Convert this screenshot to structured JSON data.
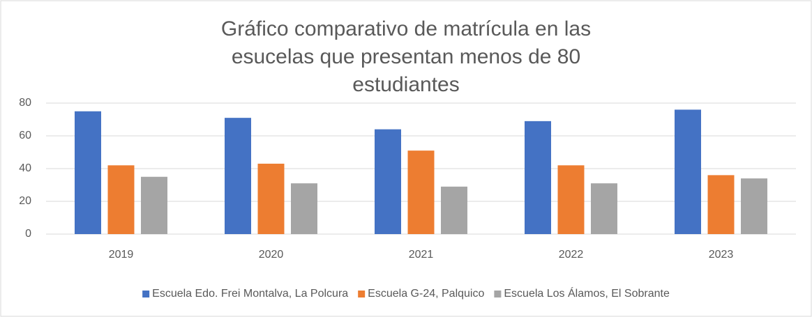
{
  "chart_data": {
    "type": "bar",
    "title": "Gráfico comparativo de matrícula en las esucelas que presentan menos de 80 estudiantes",
    "categories": [
      "2019",
      "2020",
      "2021",
      "2022",
      "2023"
    ],
    "series": [
      {
        "name": "Escuela Edo. Frei Montalva, La Polcura",
        "color": "#4472c4",
        "values": [
          75,
          71,
          64,
          69,
          76
        ]
      },
      {
        "name": "Escuela G-24, Palquico",
        "color": "#ed7d31",
        "values": [
          42,
          43,
          51,
          42,
          36
        ]
      },
      {
        "name": "Escuela Los Álamos, El Sobrante",
        "color": "#a5a5a5",
        "values": [
          35,
          31,
          29,
          31,
          34
        ]
      }
    ],
    "ylim": [
      0,
      80
    ],
    "yticks": [
      0,
      20,
      40,
      60,
      80
    ],
    "grid": true,
    "legend": "bottom"
  }
}
